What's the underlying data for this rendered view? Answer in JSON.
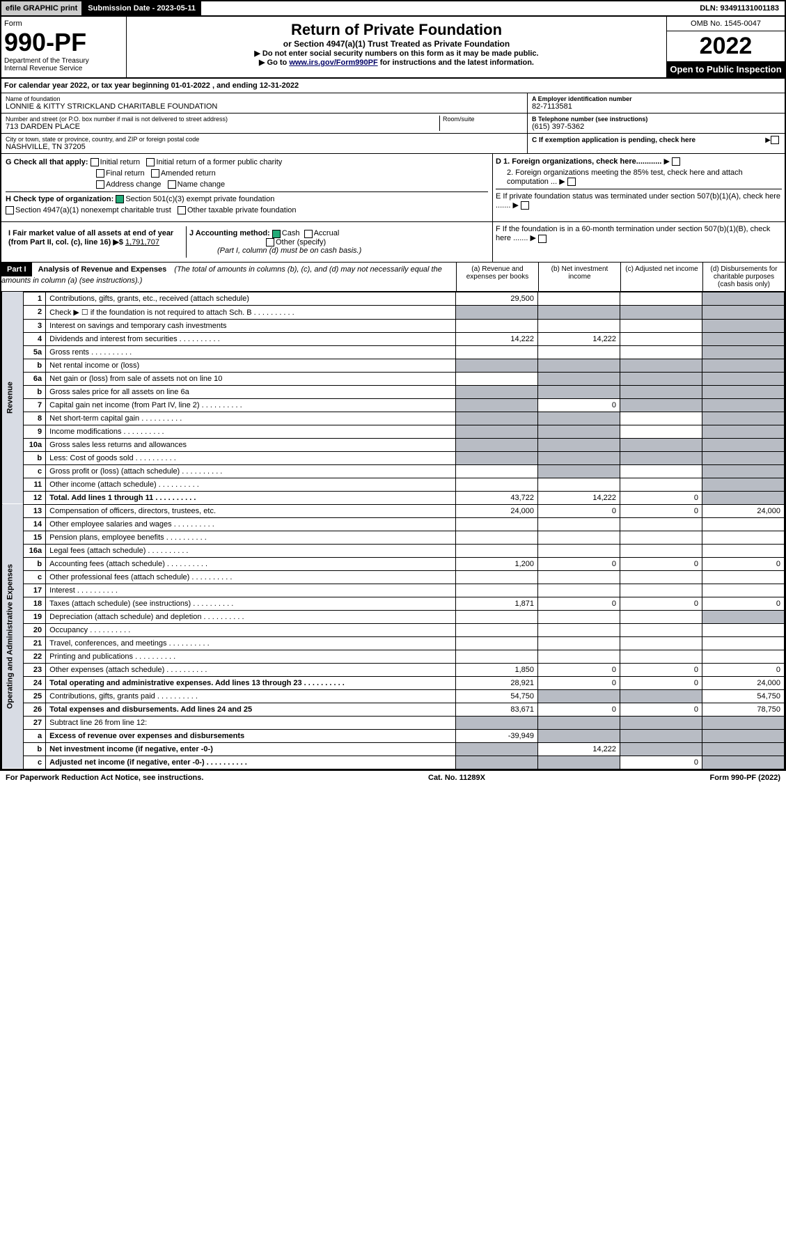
{
  "topbar": {
    "efile": "efile GRAPHIC print",
    "subdate_label": "Submission Date - 2023-05-11",
    "dln": "DLN: 93491131001183"
  },
  "header": {
    "form_label": "Form",
    "form_no": "990-PF",
    "dept": "Department of the Treasury",
    "irs": "Internal Revenue Service",
    "title": "Return of Private Foundation",
    "subtitle": "or Section 4947(a)(1) Trust Treated as Private Foundation",
    "note1": "▶ Do not enter social security numbers on this form as it may be made public.",
    "note2_pre": "▶ Go to ",
    "note2_link": "www.irs.gov/Form990PF",
    "note2_post": " for instructions and the latest information.",
    "omb": "OMB No. 1545-0047",
    "year": "2022",
    "inspect": "Open to Public Inspection"
  },
  "calyear": "For calendar year 2022, or tax year beginning 01-01-2022           , and ending 12-31-2022",
  "info": {
    "name_lbl": "Name of foundation",
    "name": "LONNIE & KITTY STRICKLAND CHARITABLE FOUNDATION",
    "addr_lbl": "Number and street (or P.O. box number if mail is not delivered to street address)",
    "addr": "713 DARDEN PLACE",
    "room_lbl": "Room/suite",
    "city_lbl": "City or town, state or province, country, and ZIP or foreign postal code",
    "city": "NASHVILLE, TN  37205",
    "ein_lbl": "A Employer identification number",
    "ein": "82-7113581",
    "phone_lbl": "B Telephone number (see instructions)",
    "phone": "(615) 397-5362",
    "c_lbl": "C If exemption application is pending, check here"
  },
  "g": {
    "label": "G Check all that apply:",
    "opts": [
      "Initial return",
      "Final return",
      "Address change",
      "Initial return of a former public charity",
      "Amended return",
      "Name change"
    ]
  },
  "h": {
    "label": "H Check type of organization:",
    "opt1": "Section 501(c)(3) exempt private foundation",
    "opt2": "Section 4947(a)(1) nonexempt charitable trust",
    "opt3": "Other taxable private foundation"
  },
  "i": {
    "label": "I Fair market value of all assets at end of year (from Part II, col. (c), line 16) ▶$",
    "val": "1,791,707"
  },
  "j": {
    "label": "J Accounting method:",
    "cash": "Cash",
    "accrual": "Accrual",
    "other": "Other (specify)",
    "note": "(Part I, column (d) must be on cash basis.)"
  },
  "d": {
    "d1": "D 1. Foreign organizations, check here............",
    "d2": "2. Foreign organizations meeting the 85% test, check here and attach computation ...",
    "e": "E  If private foundation status was terminated under section 507(b)(1)(A), check here .......",
    "f": "F  If the foundation is in a 60-month termination under section 507(b)(1)(B), check here ......."
  },
  "part1": {
    "hdr": "Part I",
    "title": "Analysis of Revenue and Expenses",
    "title_note": "(The total of amounts in columns (b), (c), and (d) may not necessarily equal the amounts in column (a) (see instructions).)",
    "cols": {
      "a": "(a)  Revenue and expenses per books",
      "b": "(b)  Net investment income",
      "c": "(c)  Adjusted net income",
      "d": "(d)  Disbursements for charitable purposes (cash basis only)"
    }
  },
  "vlabels": {
    "rev": "Revenue",
    "exp": "Operating and Administrative Expenses"
  },
  "rows": [
    {
      "ln": "1",
      "desc": "Contributions, gifts, grants, etc., received (attach schedule)",
      "a": "29,500",
      "shade": [
        "d"
      ]
    },
    {
      "ln": "2",
      "desc": "Check ▶ ☐ if the foundation is not required to attach Sch. B",
      "shade": [
        "a",
        "b",
        "c",
        "d"
      ],
      "dots": true
    },
    {
      "ln": "3",
      "desc": "Interest on savings and temporary cash investments",
      "shade": [
        "d"
      ]
    },
    {
      "ln": "4",
      "desc": "Dividends and interest from securities",
      "a": "14,222",
      "b": "14,222",
      "shade": [
        "d"
      ],
      "dots": true
    },
    {
      "ln": "5a",
      "desc": "Gross rents",
      "shade": [
        "d"
      ],
      "dots": true
    },
    {
      "ln": "b",
      "desc": "Net rental income or (loss)",
      "shade": [
        "a",
        "b",
        "c",
        "d"
      ]
    },
    {
      "ln": "6a",
      "desc": "Net gain or (loss) from sale of assets not on line 10",
      "shade": [
        "b",
        "c",
        "d"
      ]
    },
    {
      "ln": "b",
      "desc": "Gross sales price for all assets on line 6a",
      "shade": [
        "a",
        "b",
        "c",
        "d"
      ]
    },
    {
      "ln": "7",
      "desc": "Capital gain net income (from Part IV, line 2)",
      "b": "0",
      "shade": [
        "a",
        "c",
        "d"
      ],
      "dots": true
    },
    {
      "ln": "8",
      "desc": "Net short-term capital gain",
      "shade": [
        "a",
        "b",
        "d"
      ],
      "dots": true
    },
    {
      "ln": "9",
      "desc": "Income modifications",
      "shade": [
        "a",
        "b",
        "d"
      ],
      "dots": true
    },
    {
      "ln": "10a",
      "desc": "Gross sales less returns and allowances",
      "shade": [
        "a",
        "b",
        "c",
        "d"
      ]
    },
    {
      "ln": "b",
      "desc": "Less: Cost of goods sold",
      "shade": [
        "a",
        "b",
        "c",
        "d"
      ],
      "dots": true
    },
    {
      "ln": "c",
      "desc": "Gross profit or (loss) (attach schedule)",
      "shade": [
        "b",
        "d"
      ],
      "dots": true
    },
    {
      "ln": "11",
      "desc": "Other income (attach schedule)",
      "shade": [
        "d"
      ],
      "dots": true
    },
    {
      "ln": "12",
      "desc": "Total. Add lines 1 through 11",
      "a": "43,722",
      "b": "14,222",
      "c": "0",
      "shade": [
        "d"
      ],
      "bold": true,
      "dots": true
    },
    {
      "ln": "13",
      "desc": "Compensation of officers, directors, trustees, etc.",
      "a": "24,000",
      "b": "0",
      "c": "0",
      "d": "24,000"
    },
    {
      "ln": "14",
      "desc": "Other employee salaries and wages",
      "dots": true
    },
    {
      "ln": "15",
      "desc": "Pension plans, employee benefits",
      "dots": true
    },
    {
      "ln": "16a",
      "desc": "Legal fees (attach schedule)",
      "dots": true
    },
    {
      "ln": "b",
      "desc": "Accounting fees (attach schedule)",
      "a": "1,200",
      "b": "0",
      "c": "0",
      "d": "0",
      "dots": true
    },
    {
      "ln": "c",
      "desc": "Other professional fees (attach schedule)",
      "dots": true
    },
    {
      "ln": "17",
      "desc": "Interest",
      "dots": true
    },
    {
      "ln": "18",
      "desc": "Taxes (attach schedule) (see instructions)",
      "a": "1,871",
      "b": "0",
      "c": "0",
      "d": "0",
      "dots": true
    },
    {
      "ln": "19",
      "desc": "Depreciation (attach schedule) and depletion",
      "shade": [
        "d"
      ],
      "dots": true
    },
    {
      "ln": "20",
      "desc": "Occupancy",
      "dots": true
    },
    {
      "ln": "21",
      "desc": "Travel, conferences, and meetings",
      "dots": true
    },
    {
      "ln": "22",
      "desc": "Printing and publications",
      "dots": true
    },
    {
      "ln": "23",
      "desc": "Other expenses (attach schedule)",
      "a": "1,850",
      "b": "0",
      "c": "0",
      "d": "0",
      "dots": true
    },
    {
      "ln": "24",
      "desc": "Total operating and administrative expenses. Add lines 13 through 23",
      "a": "28,921",
      "b": "0",
      "c": "0",
      "d": "24,000",
      "bold": true,
      "dots": true
    },
    {
      "ln": "25",
      "desc": "Contributions, gifts, grants paid",
      "a": "54,750",
      "d": "54,750",
      "shade": [
        "b",
        "c"
      ],
      "dots": true
    },
    {
      "ln": "26",
      "desc": "Total expenses and disbursements. Add lines 24 and 25",
      "a": "83,671",
      "b": "0",
      "c": "0",
      "d": "78,750",
      "bold": true
    },
    {
      "ln": "27",
      "desc": "Subtract line 26 from line 12:",
      "shade": [
        "a",
        "b",
        "c",
        "d"
      ]
    },
    {
      "ln": "a",
      "desc": "Excess of revenue over expenses and disbursements",
      "a": "-39,949",
      "shade": [
        "b",
        "c",
        "d"
      ],
      "bold": true
    },
    {
      "ln": "b",
      "desc": "Net investment income (if negative, enter -0-)",
      "b": "14,222",
      "shade": [
        "a",
        "c",
        "d"
      ],
      "bold": true
    },
    {
      "ln": "c",
      "desc": "Adjusted net income (if negative, enter -0-)",
      "c": "0",
      "shade": [
        "a",
        "b",
        "d"
      ],
      "bold": true,
      "dots": true
    }
  ],
  "footer": {
    "left": "For Paperwork Reduction Act Notice, see instructions.",
    "mid": "Cat. No. 11289X",
    "right": "Form 990-PF (2022)"
  },
  "colors": {
    "shade": "#b8bcc4",
    "vlabel_bg": "#d8dce4",
    "link": "#003366"
  }
}
